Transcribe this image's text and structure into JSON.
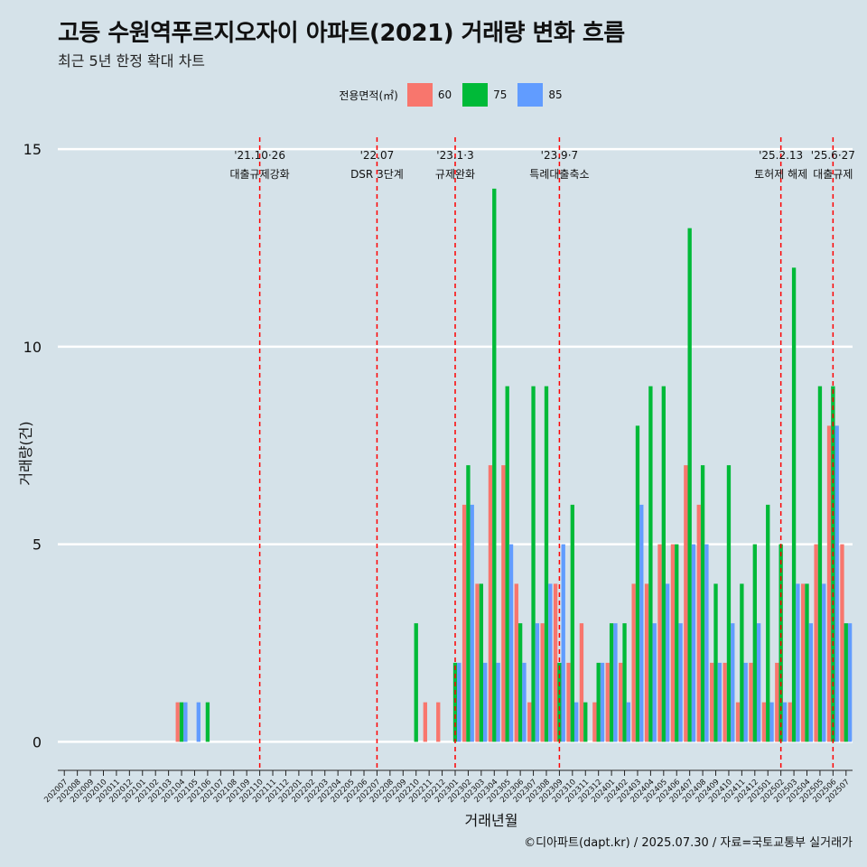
{
  "chart_data": {
    "type": "bar",
    "title": "고등 수원역푸르지오자이 아파트(2021) 거래량 변화 흐름",
    "subtitle": "최근 5년 한정 확대 차트",
    "xlabel": "거래년월",
    "ylabel": "거래량(건)",
    "ylim": [
      -0.7,
      15.3
    ],
    "yticks": [
      0,
      5,
      10,
      15
    ],
    "legend": {
      "title": "전용면적(㎡)",
      "position": "top",
      "entries": [
        "60",
        "75",
        "85"
      ]
    },
    "colors": {
      "60": "#f8766d",
      "75": "#00ba38",
      "85": "#619cff"
    },
    "categories": [
      "202007",
      "202008",
      "202009",
      "202010",
      "202011",
      "202012",
      "202101",
      "202102",
      "202103",
      "202104",
      "202105",
      "202106",
      "202107",
      "202108",
      "202109",
      "202110",
      "202111",
      "202112",
      "202201",
      "202202",
      "202203",
      "202204",
      "202205",
      "202206",
      "202207",
      "202208",
      "202209",
      "202210",
      "202211",
      "202212",
      "202301",
      "202302",
      "202303",
      "202304",
      "202305",
      "202306",
      "202307",
      "202308",
      "202309",
      "202310",
      "202311",
      "202312",
      "202401",
      "202402",
      "202403",
      "202404",
      "202405",
      "202406",
      "202407",
      "202408",
      "202409",
      "202410",
      "202411",
      "202412",
      "202501",
      "202502",
      "202503",
      "202504",
      "202505",
      "202506",
      "202507"
    ],
    "series": [
      {
        "name": "60",
        "values": [
          0,
          0,
          0,
          0,
          0,
          0,
          0,
          0,
          0,
          1,
          0,
          0,
          0,
          0,
          0,
          0,
          0,
          0,
          0,
          0,
          0,
          0,
          0,
          0,
          0,
          0,
          0,
          0,
          1,
          1,
          0,
          6,
          4,
          7,
          7,
          4,
          1,
          3,
          4,
          2,
          3,
          1,
          2,
          2,
          4,
          4,
          5,
          5,
          7,
          6,
          2,
          2,
          1,
          2,
          1,
          2,
          1,
          4,
          5,
          8,
          5
        ]
      },
      {
        "name": "75",
        "values": [
          0,
          0,
          0,
          0,
          0,
          0,
          0,
          0,
          0,
          1,
          0,
          1,
          0,
          0,
          0,
          0,
          0,
          0,
          0,
          0,
          0,
          0,
          0,
          0,
          0,
          0,
          0,
          3,
          0,
          0,
          2,
          7,
          4,
          14,
          9,
          3,
          9,
          9,
          2,
          6,
          1,
          2,
          3,
          3,
          8,
          9,
          9,
          5,
          13,
          7,
          4,
          7,
          4,
          5,
          6,
          5,
          12,
          4,
          9,
          9,
          3
        ]
      },
      {
        "name": "85",
        "values": [
          0,
          0,
          0,
          0,
          0,
          0,
          0,
          0,
          0,
          1,
          1,
          0,
          0,
          0,
          0,
          0,
          0,
          0,
          0,
          0,
          0,
          0,
          0,
          0,
          0,
          0,
          0,
          0,
          0,
          0,
          2,
          6,
          2,
          2,
          5,
          2,
          3,
          4,
          5,
          1,
          0,
          2,
          3,
          1,
          6,
          3,
          4,
          3,
          5,
          5,
          2,
          3,
          2,
          3,
          1,
          1,
          4,
          3,
          4,
          8,
          3
        ]
      }
    ],
    "events": [
      {
        "category": "202110",
        "date": "'21.10·26",
        "label": "대출규제강화"
      },
      {
        "category": "202207",
        "date": "'22.07",
        "label": "DSR 3단계"
      },
      {
        "category": "202301",
        "date": "'23.1·3",
        "label": "규제완화"
      },
      {
        "category": "202309",
        "date": "'23.9·7",
        "label": "특례대출축소"
      },
      {
        "category": "202502",
        "date": "'25.2.13",
        "label": "토허제 해제"
      },
      {
        "category": "202506",
        "date": "'25.6·27",
        "label": "대출규제"
      }
    ]
  },
  "caption": "©디아파트(dapt.kr) / 2025.07.30 / 자료=국토교통부 실거래가"
}
